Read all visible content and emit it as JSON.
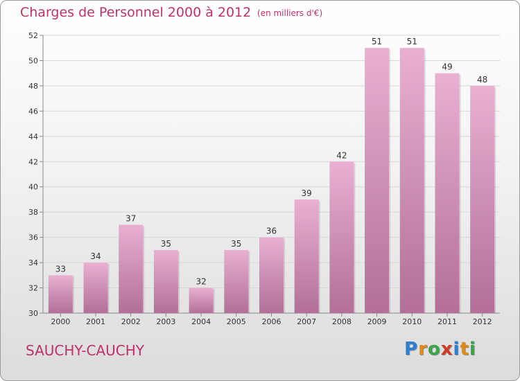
{
  "header": {
    "title": "Charges de Personnel 2000 à 2012",
    "subtitle": "(en milliers d'€)"
  },
  "footer": {
    "place": "SAUCHY-CAUCHY",
    "brand": {
      "letters": [
        "P",
        "r",
        "o",
        "x",
        "i",
        "t",
        "i"
      ],
      "colors": [
        "#2f7fd0",
        "#e08a18",
        "#3aa64a",
        "#d03a2a",
        "#2f7fd0",
        "#e08a18",
        "#3aa64a"
      ]
    }
  },
  "colors": {
    "bar_top": "#e9b0d2",
    "bar_bottom": "#b36f97",
    "label": "#333333",
    "axis": "#888888",
    "grid": "#d8d8d8"
  },
  "chart_data": {
    "type": "bar",
    "categories": [
      "2000",
      "2001",
      "2002",
      "2003",
      "2004",
      "2005",
      "2006",
      "2007",
      "2008",
      "2009",
      "2010",
      "2011",
      "2012"
    ],
    "values": [
      33,
      34,
      37,
      35,
      32,
      35,
      36,
      39,
      42,
      51,
      51,
      49,
      48
    ],
    "ylim": [
      30,
      52
    ],
    "yticks": [
      30,
      32,
      34,
      36,
      38,
      40,
      42,
      44,
      46,
      48,
      50,
      52
    ],
    "grid": true,
    "data_labels": true
  }
}
